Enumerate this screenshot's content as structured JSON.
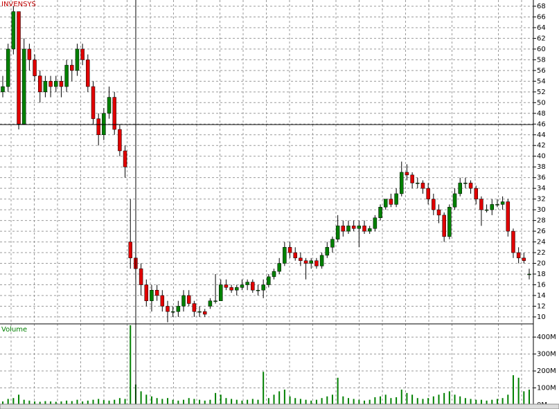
{
  "chart_data": {
    "type": "candlestick",
    "title": "INVENSYS",
    "volume_label": "Volume",
    "up_color": "#008000",
    "down_color": "#e00000",
    "volume_color": "#008000",
    "grid": true,
    "ylim": [
      8.7,
      69.16
    ],
    "yticks": [
      10,
      12,
      14,
      16,
      18,
      20,
      22,
      24,
      26,
      28,
      30,
      32,
      34,
      36,
      38,
      40,
      42,
      44,
      46,
      48,
      50,
      52,
      54,
      56,
      58,
      60,
      62,
      64,
      66,
      68
    ],
    "ohlc": [
      [
        52,
        55,
        51,
        53
      ],
      [
        53,
        61,
        52,
        60
      ],
      [
        60,
        68,
        59,
        67
      ],
      [
        67,
        67,
        45,
        46
      ],
      [
        46,
        62,
        46,
        60
      ],
      [
        60,
        61,
        56,
        58
      ],
      [
        58,
        59,
        54,
        55
      ],
      [
        55,
        56,
        50,
        52
      ],
      [
        52,
        55,
        51,
        54
      ],
      [
        54,
        55,
        51,
        53
      ],
      [
        53,
        55,
        52,
        54
      ],
      [
        54,
        55,
        51,
        53
      ],
      [
        53,
        58,
        52,
        57
      ],
      [
        57,
        58,
        54,
        56
      ],
      [
        56,
        61,
        55,
        60
      ],
      [
        60,
        61,
        57,
        58
      ],
      [
        58,
        59,
        52,
        53
      ],
      [
        53,
        54,
        46,
        47
      ],
      [
        47,
        48,
        42,
        44
      ],
      [
        44,
        49,
        43,
        48
      ],
      [
        48,
        53,
        47,
        51
      ],
      [
        51,
        52,
        44,
        45
      ],
      [
        45,
        46,
        40,
        41
      ],
      [
        41,
        42,
        36,
        38
      ],
      [
        24,
        32,
        19,
        21
      ],
      [
        21,
        22,
        17,
        19
      ],
      [
        19,
        20,
        14,
        16
      ],
      [
        16,
        17,
        12,
        13
      ],
      [
        13,
        16,
        11,
        15
      ],
      [
        15,
        16,
        13,
        14
      ],
      [
        14,
        15,
        11,
        12
      ],
      [
        12,
        13,
        9,
        11
      ],
      [
        11,
        12,
        10,
        11
      ],
      [
        11,
        13,
        10,
        12
      ],
      [
        12,
        15,
        11,
        14
      ],
      [
        14,
        15,
        12,
        12.5
      ],
      [
        12.5,
        13,
        10,
        11
      ],
      [
        11,
        12,
        10,
        11
      ],
      [
        11,
        11.5,
        10,
        10.5
      ],
      [
        12,
        13.5,
        11.5,
        13
      ],
      [
        13,
        18,
        12.5,
        13
      ],
      [
        13,
        17,
        13,
        16
      ],
      [
        16,
        17,
        15,
        15.5
      ],
      [
        15.5,
        16,
        14.5,
        15
      ],
      [
        15,
        16,
        14,
        15.5
      ],
      [
        15.5,
        17,
        15,
        16
      ],
      [
        16,
        17,
        15,
        16.5
      ],
      [
        16.5,
        17,
        14.5,
        15
      ],
      [
        15,
        16,
        14,
        15
      ],
      [
        15,
        17,
        13.5,
        16
      ],
      [
        16,
        18,
        15.5,
        17.5
      ],
      [
        17.5,
        19,
        17,
        18.5
      ],
      [
        18.5,
        21,
        18,
        20
      ],
      [
        20,
        24,
        19.5,
        23
      ],
      [
        23,
        24,
        21,
        22
      ],
      [
        22,
        23,
        20.5,
        21
      ],
      [
        21,
        22,
        19.5,
        20.5
      ],
      [
        20.5,
        21,
        17,
        20
      ],
      [
        20,
        21,
        19,
        20.5
      ],
      [
        20.5,
        21,
        19,
        19.5
      ],
      [
        19.5,
        22,
        19,
        21.5
      ],
      [
        21.5,
        24,
        21,
        23
      ],
      [
        23,
        25,
        22,
        24.5
      ],
      [
        24.5,
        29,
        24,
        27
      ],
      [
        27,
        28,
        25,
        26
      ],
      [
        26,
        28,
        25.5,
        27
      ],
      [
        27,
        28,
        26,
        26.5
      ],
      [
        26.5,
        28,
        23,
        27
      ],
      [
        27,
        28,
        25.5,
        26
      ],
      [
        26,
        27,
        25.5,
        26.5
      ],
      [
        26.5,
        29,
        26,
        28.5
      ],
      [
        28.5,
        31,
        28,
        30.5
      ],
      [
        30.5,
        32,
        30,
        32
      ],
      [
        32,
        33,
        30.5,
        31
      ],
      [
        31,
        34,
        30.5,
        33
      ],
      [
        33,
        39,
        32.5,
        37
      ],
      [
        37,
        38.5,
        35.5,
        36.5
      ],
      [
        36.5,
        37,
        34,
        35
      ],
      [
        35,
        36,
        34,
        35
      ],
      [
        35,
        35.5,
        33,
        34
      ],
      [
        34,
        35,
        31,
        32
      ],
      [
        32,
        33,
        29,
        30
      ],
      [
        30,
        31,
        27.5,
        29
      ],
      [
        29,
        29.5,
        24,
        25
      ],
      [
        25,
        31,
        24.5,
        30.5
      ],
      [
        30.5,
        34,
        30,
        33
      ],
      [
        33,
        36,
        32.5,
        35
      ],
      [
        35,
        36,
        34,
        35
      ],
      [
        35,
        35.5,
        33,
        34
      ],
      [
        34,
        34.5,
        31,
        32
      ],
      [
        32,
        32.5,
        27,
        30
      ],
      [
        30,
        31,
        29.5,
        30
      ],
      [
        30,
        32,
        29,
        31
      ],
      [
        31,
        32,
        30.5,
        31
      ],
      [
        31,
        32.5,
        30,
        31.5
      ],
      [
        31.5,
        32,
        25,
        26
      ],
      [
        26,
        26.5,
        21,
        22
      ],
      [
        22,
        23,
        20,
        21
      ],
      [
        21,
        22,
        20,
        20.5
      ],
      [
        18,
        19,
        17,
        18
      ]
    ],
    "volume": [
      20,
      35,
      40,
      60,
      30,
      25,
      20,
      18,
      22,
      20,
      18,
      20,
      25,
      22,
      30,
      20,
      25,
      30,
      35,
      28,
      25,
      30,
      40,
      35,
      470,
      120,
      80,
      60,
      50,
      40,
      35,
      40,
      30,
      25,
      30,
      40,
      35,
      30,
      25,
      30,
      70,
      60,
      40,
      35,
      30,
      25,
      30,
      35,
      30,
      195,
      40,
      60,
      80,
      90,
      50,
      40,
      35,
      30,
      25,
      30,
      40,
      50,
      60,
      160,
      50,
      40,
      35,
      30,
      25,
      30,
      45,
      50,
      60,
      40,
      45,
      90,
      70,
      60,
      40,
      35,
      40,
      50,
      60,
      70,
      80,
      60,
      50,
      40,
      35,
      30,
      30,
      25,
      30,
      35,
      40,
      60,
      175,
      160,
      80,
      90
    ],
    "vol_ylim": [
      0,
      478
    ],
    "vol_yticks": [
      {
        "value": 0,
        "label": "0M"
      },
      {
        "value": 100,
        "label": "100M"
      },
      {
        "value": 200,
        "label": "200M"
      },
      {
        "value": 300,
        "label": "300M"
      },
      {
        "value": 400,
        "label": "400M"
      }
    ]
  }
}
